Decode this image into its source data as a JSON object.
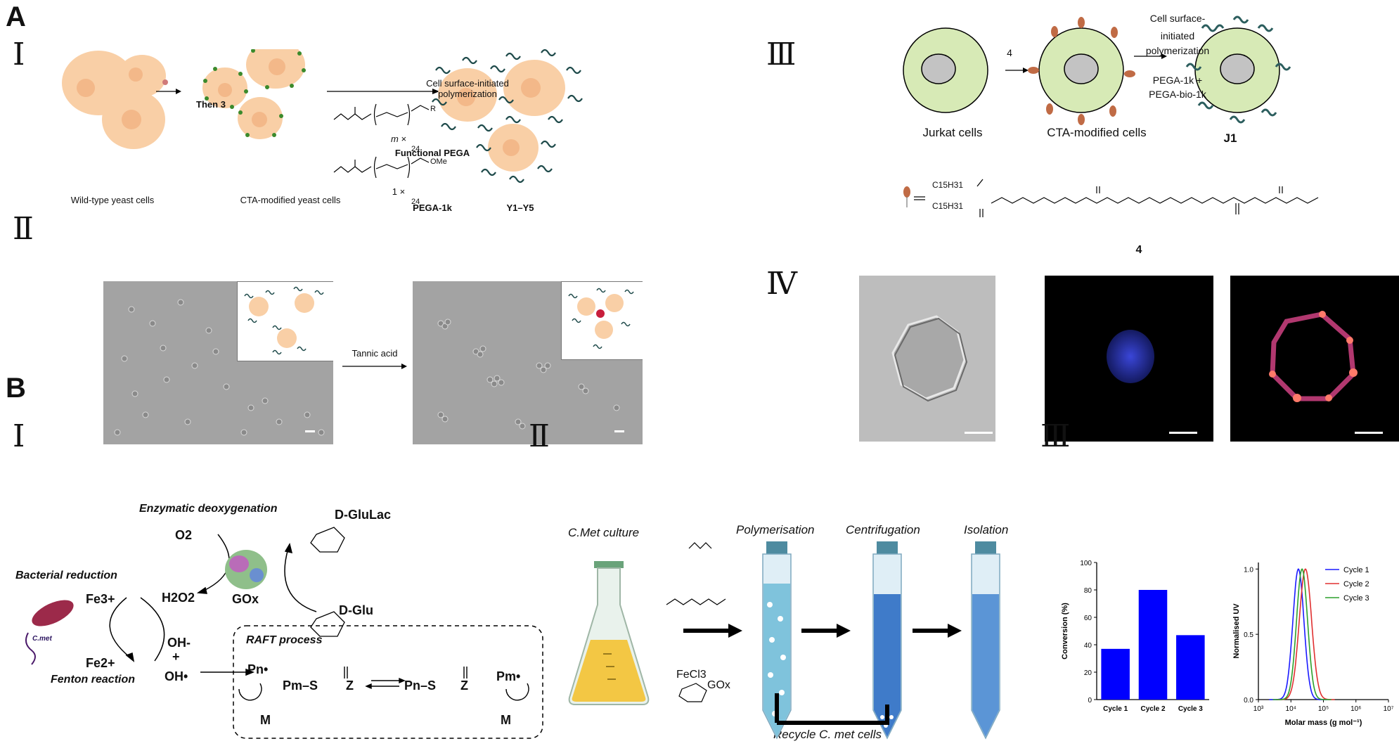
{
  "panel_A": {
    "letter": "A",
    "sub_I": {
      "roman": "Ⅰ",
      "label_wild": "Wild-type yeast cells",
      "label_then": "Then 3",
      "label_cta": "CTA-modified yeast cells",
      "arrow_top_line1": "Cell surface-initiated",
      "arrow_top_line2": "polymerization",
      "m_x": "m ×",
      "one_x": "1 ×",
      "sub_24a": "24",
      "sub_24b": "24",
      "r_label": "R",
      "ome_label": "OMe",
      "functional_pega": "Functional PEGA",
      "pega_1k": "PEGA-1k",
      "y1y5": "Y1–Y5"
    },
    "sub_II": {
      "roman": "Ⅱ",
      "tannic_acid": "Tannic acid"
    },
    "sub_III": {
      "roman": "Ⅲ",
      "step_4": "4",
      "right_line1": "Cell surface-",
      "right_line2": "initiated",
      "right_line3": "polymerization",
      "pega_line1": "PEGA-1k  +",
      "pega_line2": "PEGA-bio-1k",
      "label_jurkat": "Jurkat cells",
      "label_cta": "CTA-modified cells",
      "label_j1": "J1",
      "compound_number": "4",
      "c15_top": "C15H31",
      "c15_bottom": "C15H31"
    },
    "sub_IV": {
      "roman": "Ⅳ"
    }
  },
  "panel_B": {
    "letter": "B",
    "sub_I": {
      "roman": "Ⅰ",
      "enzymatic": "Enzymatic deoxygenation",
      "o2": "O2",
      "h2o2": "H2O2",
      "gox": "GOx",
      "dglulac": "D-GluLac",
      "dglu": "D-Glu",
      "bacterial": "Bacterial reduction",
      "fe3": "Fe3+",
      "fe2": "Fe2+",
      "cmet": "C.met",
      "fenton": "Fenton reaction",
      "oh_minus": "OH-",
      "plus": "+",
      "oh_dot": "OH•",
      "raft": "RAFT process",
      "pn": "Pn•",
      "pm_s": "Pm–S",
      "z": "Z",
      "pn_s": "Pn–S",
      "pm": "Pm•",
      "m": "M"
    },
    "sub_II": {
      "roman": "Ⅱ",
      "cmet_culture": "C.Met culture",
      "polymerisation": "Polymerisation",
      "centrifugation": "Centrifugation",
      "isolation": "Isolation",
      "fecl3": "FeCl3",
      "gox": "GOx",
      "recycle": "Recycle C. met cells"
    },
    "sub_III": {
      "roman": "Ⅲ"
    }
  },
  "chart_data": [
    {
      "type": "bar",
      "categories": [
        "Cycle 1",
        "Cycle 2",
        "Cycle 3"
      ],
      "values": [
        37,
        80,
        47
      ],
      "ylabel": "Conversion (%)",
      "xlabel": "",
      "ylim": [
        0,
        100
      ],
      "yticks": [
        "0",
        "20",
        "40",
        "60",
        "80",
        "100"
      ],
      "bar_color": "#0000ff"
    },
    {
      "type": "line",
      "xlabel": "Molar mass (g mol⁻¹)",
      "ylabel": "Normalised UV",
      "x_scale": "log",
      "xlim": [
        1000,
        10000000
      ],
      "ylim": [
        0,
        1.05
      ],
      "xticks": [
        "10³",
        "10⁴",
        "10⁵",
        "10⁶",
        "10⁷"
      ],
      "yticks": [
        "0.0",
        "0.5",
        "1.0"
      ],
      "legend_position": "top-right",
      "series": [
        {
          "name": "Cycle 1",
          "color": "#1a1aff",
          "peak": 17000,
          "width": 0.17
        },
        {
          "name": "Cycle 2",
          "color": "#e03030",
          "peak": 28000,
          "width": 0.19
        },
        {
          "name": "Cycle 3",
          "color": "#2ca02c",
          "peak": 22000,
          "width": 0.17
        }
      ]
    }
  ]
}
